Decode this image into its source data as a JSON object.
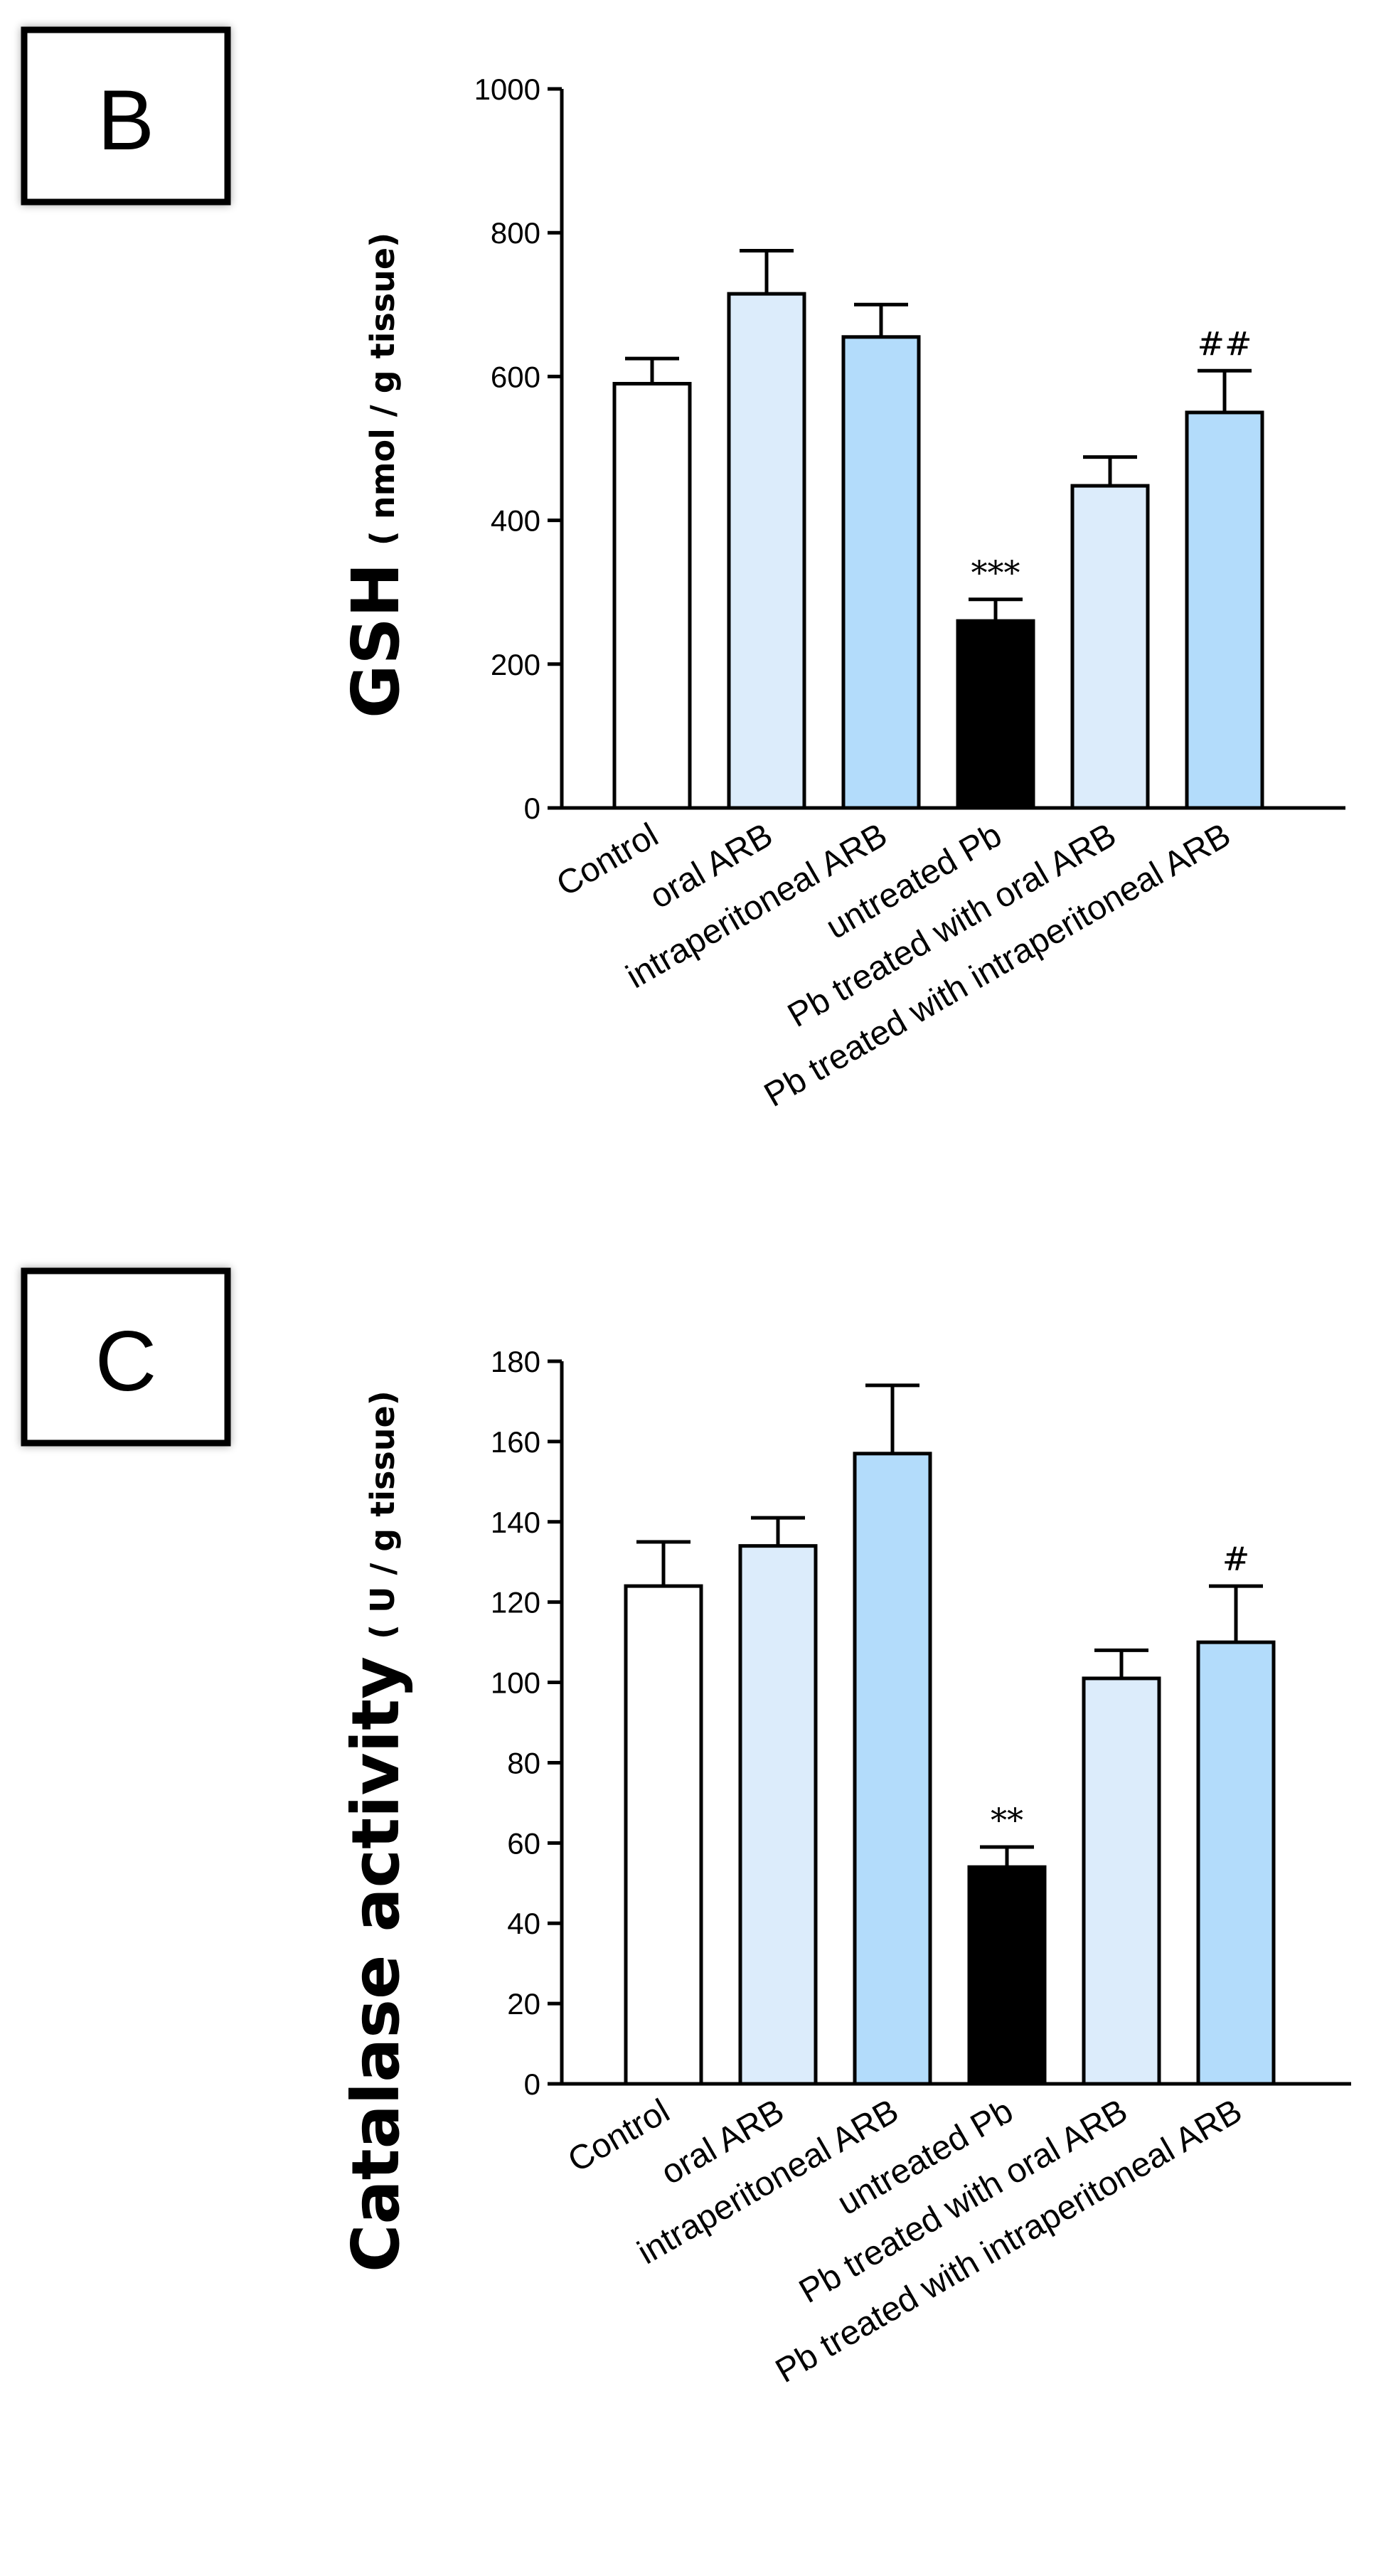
{
  "colors": {
    "white": "#ffffff",
    "light_blue": "#dcecfb",
    "medium_blue": "#b3dcfb",
    "black": "#000000"
  },
  "chart_data": [
    {
      "panel_label": "B",
      "type": "bar",
      "ylabel_main": "GSH",
      "ylabel_sub": "( nmol / g tissue)",
      "ylim": [
        0,
        1000
      ],
      "yticks": [
        0,
        200,
        400,
        600,
        800,
        1000
      ],
      "categories": [
        "Control",
        "oral ARB",
        "intraperitoneal ARB",
        "untreated Pb",
        "Pb treated with oral ARB",
        "Pb treated with intraperitoneal ARB"
      ],
      "values": [
        590,
        715,
        655,
        260,
        448,
        550
      ],
      "errors": [
        35,
        60,
        45,
        30,
        40,
        58
      ],
      "bar_colors": [
        "white",
        "light_blue",
        "medium_blue",
        "black",
        "light_blue",
        "medium_blue"
      ],
      "annotations": [
        "",
        "",
        "",
        "***",
        "",
        "##"
      ]
    },
    {
      "panel_label": "C",
      "type": "bar",
      "ylabel_main": "Catalase activity",
      "ylabel_sub": "( U / g tissue)",
      "ylim": [
        0,
        180
      ],
      "yticks": [
        0,
        20,
        40,
        60,
        80,
        100,
        120,
        140,
        160,
        180
      ],
      "categories": [
        "Control",
        "oral ARB",
        "intraperitoneal ARB",
        "untreated Pb",
        "Pb treated with oral ARB",
        "Pb treated with intraperitoneal ARB"
      ],
      "values": [
        124,
        134,
        157,
        54,
        101,
        110
      ],
      "errors": [
        11,
        7,
        17,
        5,
        7,
        14
      ],
      "bar_colors": [
        "white",
        "light_blue",
        "medium_blue",
        "black",
        "light_blue",
        "medium_blue"
      ],
      "annotations": [
        "",
        "",
        "",
        "**",
        "",
        "#"
      ]
    }
  ]
}
